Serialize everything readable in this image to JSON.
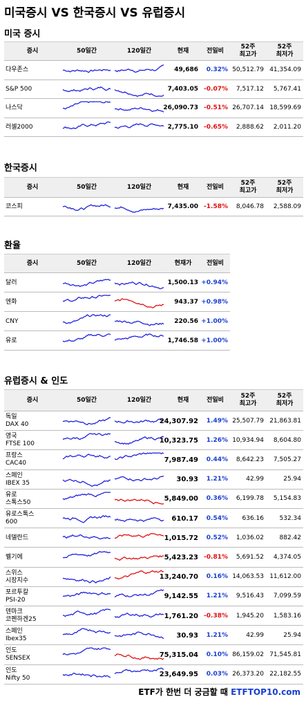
{
  "title": "미국증시 VS 한국증시 VS 유럽증시",
  "sections": [
    {
      "title": "미국 증시",
      "header": [
        "증시",
        "50일간",
        "120일간",
        "현재",
        "전일비",
        "52주\n최고가",
        "52주\n최저가"
      ],
      "rows": [
        [
          "다우존스",
          "49,686",
          "0.32%",
          "50,512.79",
          "41,354.09"
        ],
        [
          "S&P 500",
          "7,403.05",
          "-0.07%",
          "7,517.12",
          "5,767.41"
        ],
        [
          "나스닥",
          "26,090.73",
          "-0.51%",
          "26,707.14",
          "18,599.69"
        ],
        [
          "러셀2000",
          "2,775.10",
          "-0.65%",
          "2,888.62",
          "2,011.20"
        ]
      ]
    },
    {
      "title": "한국증시",
      "header": [
        "증시",
        "50일간",
        "120일간",
        "현재",
        "전일비",
        "52주\n최고가",
        "52주\n최저가"
      ],
      "rows": [
        [
          "코스피",
          "7,435.00",
          "-1.58%",
          "8,046.78",
          "2,588.09"
        ]
      ]
    },
    {
      "title": "환율",
      "header": [
        "증시",
        "50일간",
        "120일간",
        "현재가",
        "전일비"
      ],
      "rows": [
        [
          "달러",
          "1,500.13",
          "+0.94%"
        ],
        [
          "엔화",
          "943.37",
          "+0.98%"
        ],
        [
          "CNY",
          "220.56",
          "+1.00%"
        ],
        [
          "유로",
          "1,746.58",
          "+1.00%"
        ]
      ]
    },
    {
      "title": "유럽증시 & 인도",
      "header": [
        "증시",
        "50일간",
        "120일간",
        "현재",
        "전일비",
        "52주\n최고가",
        "52주\n최저가"
      ],
      "rows": [
        [
          "독일\nDAX 40",
          "24,307.92",
          "1.49%",
          "25,507.79",
          "21,863.81"
        ],
        [
          "영국\nFTSE 100",
          "10,323.75",
          "1.26%",
          "10,934.94",
          "8,604.80"
        ],
        [
          "프랑스\nCAC40",
          "7,987.49",
          "0.44%",
          "8,642.23",
          "7,505.27"
        ],
        [
          "스페인\nIBEX 35",
          "30.93",
          "1.21%",
          "42.99",
          "25.94"
        ],
        [
          "유로\n스톡스50",
          "5,849.00",
          "0.36%",
          "6,199.78",
          "5,154.83"
        ],
        [
          "유로스톡스\n600",
          "610.17",
          "0.54%",
          "636.16",
          "532.34"
        ],
        [
          "네델란드",
          "1,015.72",
          "0.52%",
          "1,036.02",
          "882.42"
        ],
        [
          "벨기에",
          "5,423.23",
          "-0.81%",
          "5,691.52",
          "4,374.05"
        ],
        [
          "스위스\n시장지수",
          "13,240.70",
          "0.16%",
          "14,063.53",
          "11,612.00"
        ],
        [
          "포르투칼\nPSI-20",
          "9,142.55",
          "1.21%",
          "9,516.43",
          "7,099.59"
        ],
        [
          "덴마크\n코펜하겐25",
          "1,761.20",
          "-0.38%",
          "1,945.20",
          "1,583.16"
        ],
        [
          "스페인\nIbex35",
          "30.93",
          "1.21%",
          "42.99",
          "25.94"
        ],
        [
          "인도\nSENSEX",
          "75,315.04",
          "0.10%",
          "86,159.02",
          "71,545.81"
        ],
        [
          "인도\nNifty 50",
          "23,649.95",
          "0.03%",
          "26,373.20",
          "22,182.55"
        ]
      ]
    }
  ],
  "footer": {
    "text": "ETF가 한번 더 궁금할 때",
    "link": "ETFTOP10.com"
  }
}
